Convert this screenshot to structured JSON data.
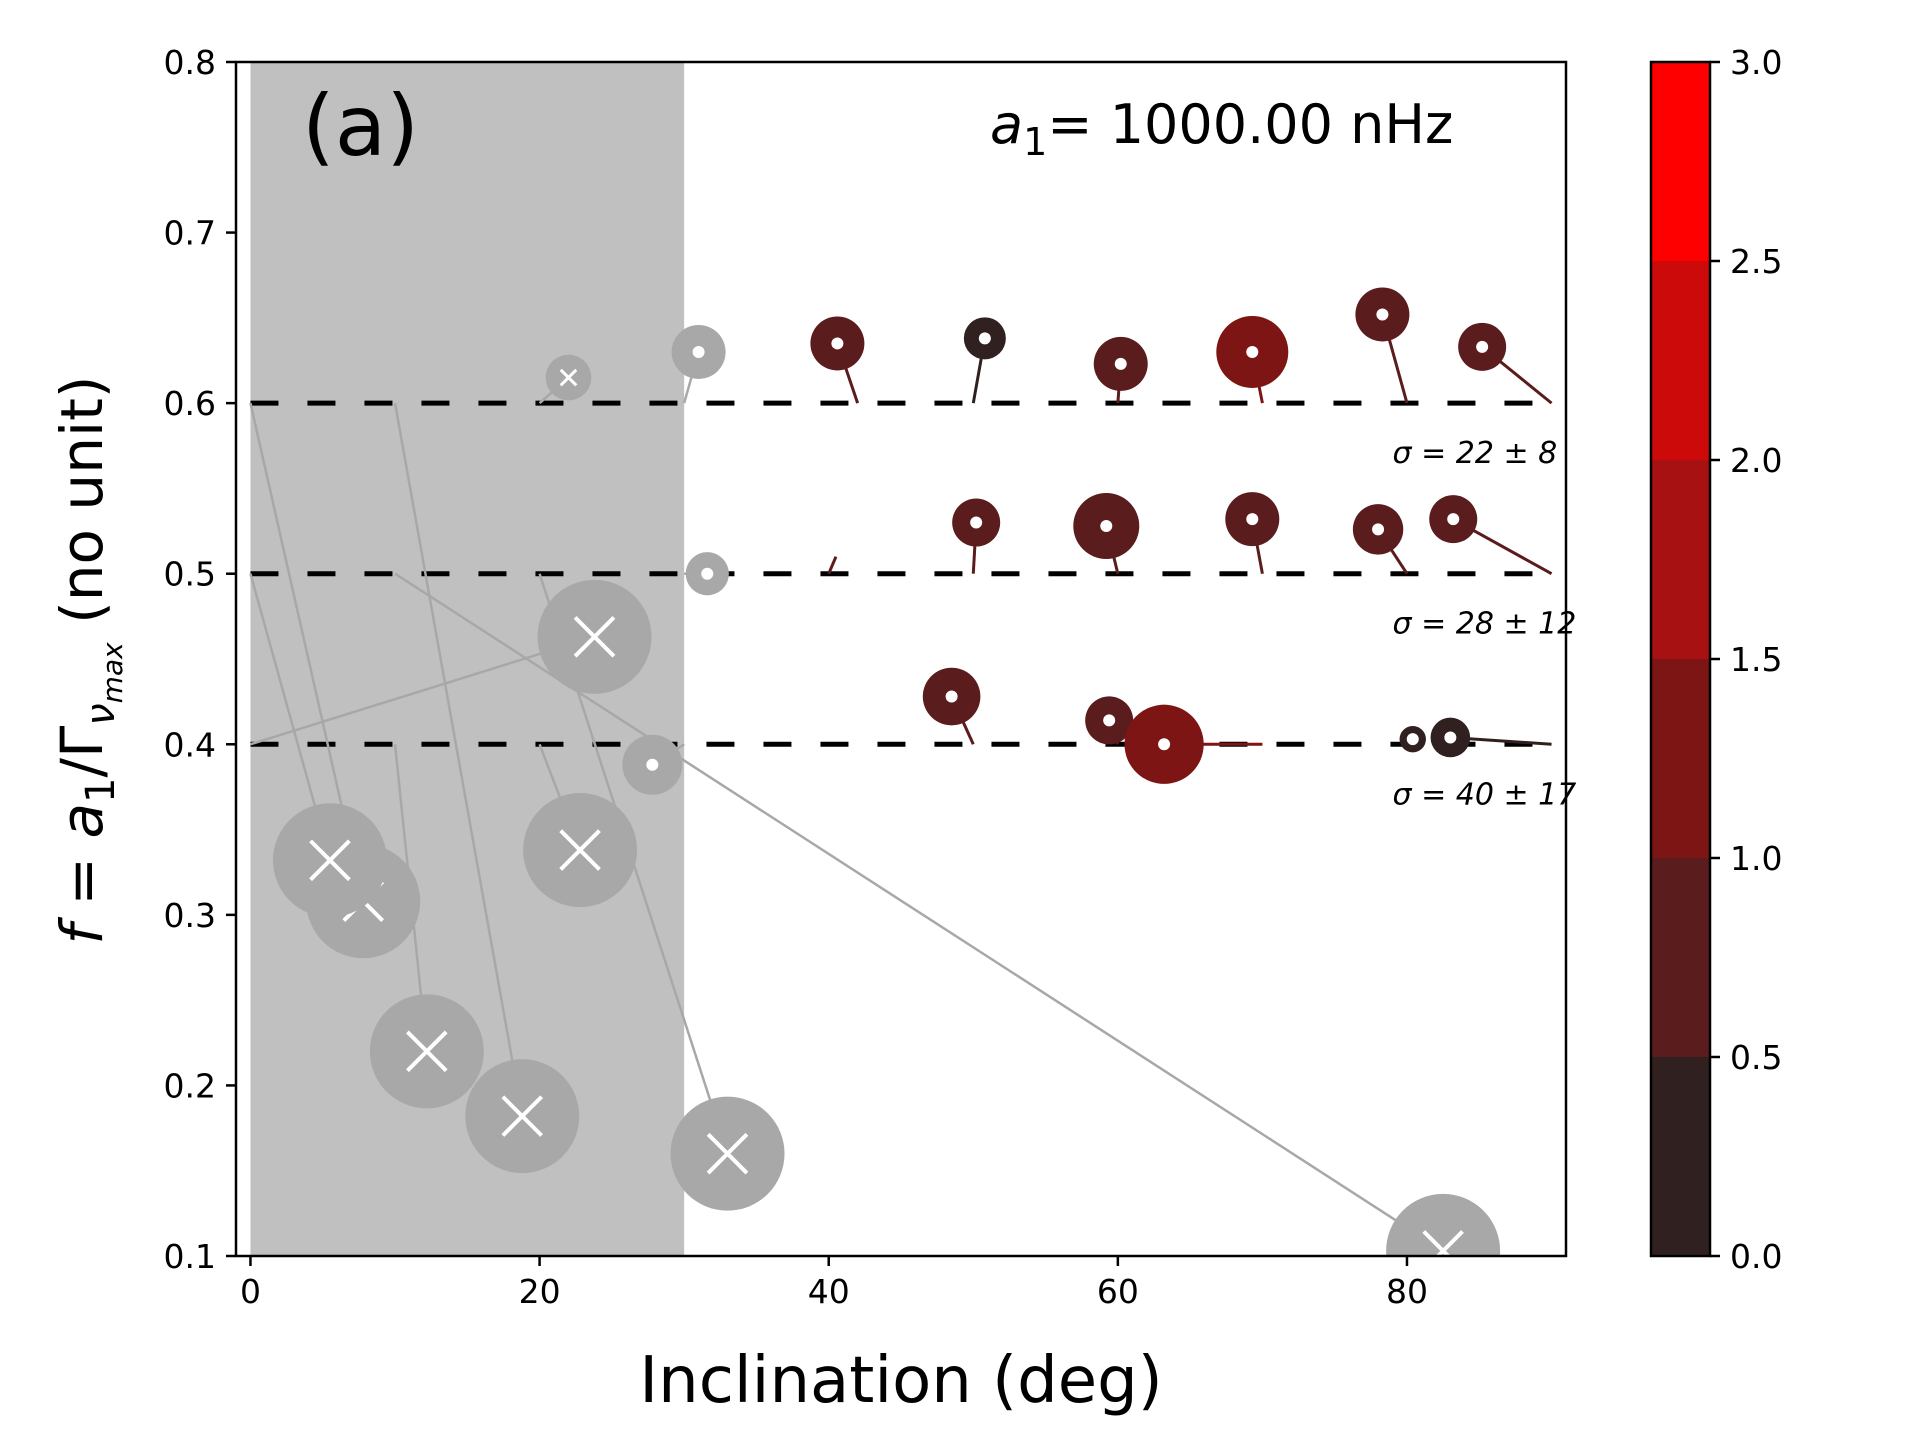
{
  "chart_data": {
    "type": "scatter",
    "panel_label": "(a)",
    "annotation": {
      "var": "a",
      "sub": "1",
      "text": "= 1000.00 nHz"
    },
    "xlabel": "Inclination (deg)",
    "ylabel": {
      "lhs": "f",
      "eq": " = ",
      "var": "a",
      "sub": "1",
      "slash": "/Γ",
      "sub2": "ν",
      "sub3": "max",
      "units": "  (no unit)"
    },
    "xlim": [
      -1,
      91
    ],
    "ylim": [
      0.1,
      0.8
    ],
    "xticks": [
      0,
      20,
      40,
      60,
      80
    ],
    "yticks": [
      0.1,
      0.2,
      0.3,
      0.4,
      0.5,
      0.6,
      0.7,
      0.8
    ],
    "xtick_labels": [
      "0",
      "20",
      "40",
      "60",
      "80"
    ],
    "ytick_labels": [
      "0.1",
      "0.2",
      "0.3",
      "0.4",
      "0.5",
      "0.6",
      "0.7",
      "0.8"
    ],
    "shaded_region": {
      "x": [
        0,
        30
      ]
    },
    "reference_lines": [
      {
        "y": 0.6,
        "label": "σ = 22 ± 8"
      },
      {
        "y": 0.5,
        "label": "σ = 28 ± 12"
      },
      {
        "y": 0.4,
        "label": "σ = 40 ± 17"
      }
    ],
    "colorbar": {
      "range": [
        0,
        3
      ],
      "ticks": [
        "0.0",
        "0.5",
        "1.0",
        "1.5",
        "2.0",
        "2.5",
        "3.0"
      ],
      "colors": [
        "#312020",
        "#5a1c1c",
        "#7d1515",
        "#a71111",
        "#cd0a0a",
        "#fe0000"
      ]
    },
    "valid_points": [
      {
        "truth": [
          42,
          0.6
        ],
        "x": 40.6,
        "y": 0.635,
        "value": 0.7,
        "size": 0.45
      },
      {
        "truth": [
          50,
          0.6
        ],
        "x": 50.8,
        "y": 0.638,
        "value": 0.2,
        "size": 0.35
      },
      {
        "truth": [
          60,
          0.6
        ],
        "x": 60.2,
        "y": 0.623,
        "value": 0.8,
        "size": 0.45
      },
      {
        "truth": [
          70,
          0.6
        ],
        "x": 69.3,
        "y": 0.63,
        "value": 1.4,
        "size": 0.6
      },
      {
        "truth": [
          80,
          0.6
        ],
        "x": 78.3,
        "y": 0.652,
        "value": 0.7,
        "size": 0.45
      },
      {
        "truth": [
          90,
          0.6
        ],
        "x": 85.2,
        "y": 0.633,
        "value": 0.6,
        "size": 0.4
      },
      {
        "truth": [
          40,
          0.5
        ],
        "x": 40.5,
        "y": 0.51,
        "value": 0.8,
        "size": 0.0
      },
      {
        "truth": [
          50,
          0.5
        ],
        "x": 50.2,
        "y": 0.53,
        "value": 0.9,
        "size": 0.4
      },
      {
        "truth": [
          60,
          0.5
        ],
        "x": 59.2,
        "y": 0.528,
        "value": 0.8,
        "size": 0.55
      },
      {
        "truth": [
          70,
          0.5
        ],
        "x": 69.3,
        "y": 0.532,
        "value": 0.8,
        "size": 0.45
      },
      {
        "truth": [
          80,
          0.5
        ],
        "x": 78.0,
        "y": 0.526,
        "value": 0.8,
        "size": 0.42
      },
      {
        "truth": [
          90,
          0.5
        ],
        "x": 83.2,
        "y": 0.532,
        "value": 0.7,
        "size": 0.4
      },
      {
        "truth": [
          50,
          0.4
        ],
        "x": 48.5,
        "y": 0.428,
        "value": 0.8,
        "size": 0.48
      },
      {
        "truth": [
          60,
          0.4
        ],
        "x": 59.4,
        "y": 0.414,
        "value": 0.8,
        "size": 0.4
      },
      {
        "truth": [
          70,
          0.4
        ],
        "x": 63.2,
        "y": 0.4,
        "value": 1.3,
        "size": 0.66
      },
      {
        "truth": [
          80,
          0.4
        ],
        "x": 80.4,
        "y": 0.403,
        "value": 0.2,
        "size": 0.22
      },
      {
        "truth": [
          90,
          0.4
        ],
        "x": 83.0,
        "y": 0.404,
        "value": 0.3,
        "size": 0.33
      }
    ],
    "rejected_points": [
      {
        "truth": [
          20,
          0.6
        ],
        "x": 22.0,
        "y": 0.615,
        "size": 0.38
      },
      {
        "truth": [
          30,
          0.6
        ],
        "x": 31.0,
        "y": 0.63,
        "size": 0.45,
        "kind": "dot"
      },
      {
        "truth": [
          10,
          0.6
        ],
        "x": 18.8,
        "y": 0.182,
        "size": 0.95
      },
      {
        "truth": [
          0,
          0.6
        ],
        "x": 7.8,
        "y": 0.308,
        "size": 0.95
      },
      {
        "truth": [
          30,
          0.5
        ],
        "x": 31.6,
        "y": 0.5,
        "size": 0.36,
        "kind": "dot"
      },
      {
        "truth": [
          20,
          0.5
        ],
        "x": 33.0,
        "y": 0.16,
        "size": 0.95
      },
      {
        "truth": [
          10,
          0.5
        ],
        "x": 82.5,
        "y": 0.103,
        "size": 0.95
      },
      {
        "truth": [
          0,
          0.5
        ],
        "x": 5.5,
        "y": 0.332,
        "size": 0.95
      },
      {
        "truth": [
          30,
          0.4
        ],
        "x": 27.8,
        "y": 0.388,
        "size": 0.5,
        "kind": "dot"
      },
      {
        "truth": [
          20,
          0.4
        ],
        "x": 22.8,
        "y": 0.338,
        "size": 0.95
      },
      {
        "truth": [
          10,
          0.4
        ],
        "x": 12.2,
        "y": 0.22,
        "size": 0.95
      },
      {
        "truth": [
          0,
          0.4
        ],
        "x": 23.8,
        "y": 0.463,
        "size": 0.95
      }
    ]
  }
}
